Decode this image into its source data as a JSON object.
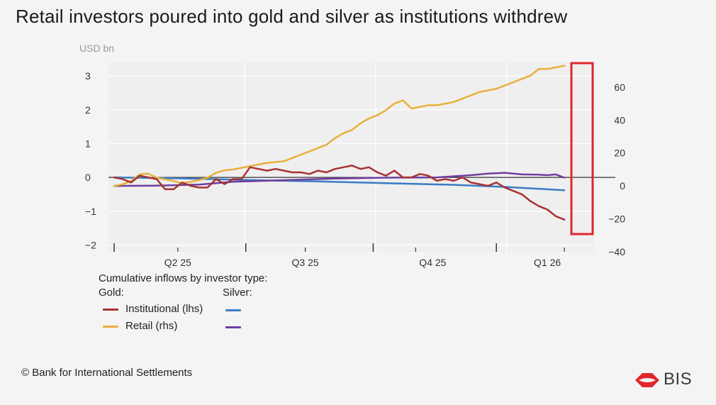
{
  "header": {
    "title": "Retail investors poured into gold and silver as institutions withdrew",
    "unit": "USD bn"
  },
  "legend": {
    "heading": "Cumulative inflows by investor type:",
    "gold_label": "Gold:",
    "silver_label": "Silver:",
    "institutional_label": "Institutional (lhs)",
    "retail_label": "Retail (rhs)"
  },
  "footer": {
    "copyright": "© Bank for International Settlements",
    "logo_text": "BIS"
  },
  "colors": {
    "gold_institutional": "#a83232",
    "gold_retail": "#e8b03c",
    "silver_institutional": "#3a7cc4",
    "silver_retail": "#6e3fa0",
    "highlight": "#e0262b"
  },
  "chart_data": {
    "type": "line",
    "x_ticks": [
      "Q2 25",
      "Q3 25",
      "Q4 25",
      "Q1 26"
    ],
    "y_left": {
      "ticks": [
        -2,
        -1,
        0,
        1,
        2,
        3
      ],
      "range": [
        -2.2,
        3.4
      ]
    },
    "y_right": {
      "ticks": [
        -40,
        -20,
        0,
        20,
        40,
        60
      ],
      "range": [
        -40,
        75
      ]
    },
    "x_range": [
      0,
      56
    ],
    "series": [
      {
        "name": "Institutional (lhs)",
        "group": "Gold",
        "axis": "left",
        "color_key": "gold_institutional",
        "points": [
          [
            0,
            0
          ],
          [
            1,
            -0.05
          ],
          [
            2,
            -0.15
          ],
          [
            3,
            0.05
          ],
          [
            4,
            0
          ],
          [
            5,
            -0.05
          ],
          [
            6,
            -0.35
          ],
          [
            7,
            -0.35
          ],
          [
            8,
            -0.15
          ],
          [
            9,
            -0.25
          ],
          [
            10,
            -0.3
          ],
          [
            11,
            -0.3
          ],
          [
            12,
            -0.05
          ],
          [
            13,
            -0.2
          ],
          [
            14,
            -0.05
          ],
          [
            15,
            -0.05
          ],
          [
            16,
            0.3
          ],
          [
            17,
            0.25
          ],
          [
            18,
            0.2
          ],
          [
            19,
            0.25
          ],
          [
            20,
            0.2
          ],
          [
            21,
            0.15
          ],
          [
            22,
            0.15
          ],
          [
            23,
            0.1
          ],
          [
            24,
            0.2
          ],
          [
            25,
            0.15
          ],
          [
            26,
            0.25
          ],
          [
            27,
            0.3
          ],
          [
            28,
            0.35
          ],
          [
            29,
            0.25
          ],
          [
            30,
            0.3
          ],
          [
            31,
            0.15
          ],
          [
            32,
            0.05
          ],
          [
            33,
            0.2
          ],
          [
            34,
            0
          ],
          [
            35,
            0
          ],
          [
            36,
            0.1
          ],
          [
            37,
            0.05
          ],
          [
            38,
            -0.1
          ],
          [
            39,
            -0.05
          ],
          [
            40,
            -0.1
          ],
          [
            41,
            0
          ],
          [
            42,
            -0.15
          ],
          [
            43,
            -0.2
          ],
          [
            44,
            -0.25
          ],
          [
            45,
            -0.15
          ],
          [
            46,
            -0.3
          ],
          [
            47,
            -0.4
          ],
          [
            48,
            -0.5
          ],
          [
            49,
            -0.7
          ],
          [
            50,
            -0.85
          ],
          [
            51,
            -0.95
          ],
          [
            52,
            -1.15
          ],
          [
            53,
            -1.25
          ]
        ]
      },
      {
        "name": "Retail (rhs)",
        "group": "Gold",
        "axis": "right",
        "color_key": "gold_retail",
        "points": [
          [
            0,
            0
          ],
          [
            1,
            1
          ],
          [
            2,
            3
          ],
          [
            3,
            7
          ],
          [
            4,
            7.5
          ],
          [
            5,
            5
          ],
          [
            6,
            4
          ],
          [
            7,
            3
          ],
          [
            8,
            1.5
          ],
          [
            9,
            2.5
          ],
          [
            10,
            3.5
          ],
          [
            11,
            5
          ],
          [
            12,
            8
          ],
          [
            13,
            9.5
          ],
          [
            14,
            10
          ],
          [
            15,
            11
          ],
          [
            16,
            12
          ],
          [
            17,
            13
          ],
          [
            18,
            14
          ],
          [
            19,
            14.5
          ],
          [
            20,
            15
          ],
          [
            21,
            17
          ],
          [
            22,
            19
          ],
          [
            23,
            21
          ],
          [
            24,
            23
          ],
          [
            25,
            25
          ],
          [
            26,
            29
          ],
          [
            27,
            32
          ],
          [
            28,
            34
          ],
          [
            29,
            38
          ],
          [
            30,
            41
          ],
          [
            31,
            43
          ],
          [
            32,
            46
          ],
          [
            33,
            50
          ],
          [
            34,
            52
          ],
          [
            35,
            47
          ],
          [
            36,
            48
          ],
          [
            37,
            49
          ],
          [
            38,
            49
          ],
          [
            39,
            50
          ],
          [
            40,
            51
          ],
          [
            41,
            53
          ],
          [
            42,
            55
          ],
          [
            43,
            57
          ],
          [
            44,
            58
          ],
          [
            45,
            59
          ],
          [
            46,
            61
          ],
          [
            47,
            63
          ],
          [
            48,
            65
          ],
          [
            49,
            67
          ],
          [
            50,
            71
          ],
          [
            51,
            71
          ],
          [
            52,
            72
          ],
          [
            53,
            73
          ]
        ]
      },
      {
        "name": "Institutional",
        "group": "Silver",
        "axis": "left",
        "color_key": "silver_institutional",
        "points": [
          [
            0,
            0
          ],
          [
            8,
            -0.03
          ],
          [
            16,
            -0.08
          ],
          [
            24,
            -0.12
          ],
          [
            32,
            -0.17
          ],
          [
            40,
            -0.22
          ],
          [
            46,
            -0.28
          ],
          [
            53,
            -0.38
          ]
        ]
      },
      {
        "name": "Retail",
        "group": "Silver",
        "axis": "right",
        "color_key": "silver_retail",
        "points": [
          [
            0,
            0
          ],
          [
            5,
            0.2
          ],
          [
            10,
            0.8
          ],
          [
            14,
            2.5
          ],
          [
            20,
            3.5
          ],
          [
            26,
            4.5
          ],
          [
            32,
            5
          ],
          [
            38,
            5.2
          ],
          [
            42,
            6.5
          ],
          [
            44,
            7.5
          ],
          [
            46,
            8
          ],
          [
            48,
            7
          ],
          [
            50,
            6.8
          ],
          [
            51,
            6.5
          ],
          [
            52,
            7
          ],
          [
            53,
            5
          ]
        ]
      }
    ],
    "grid": true,
    "legend_position": "bottom-left"
  }
}
